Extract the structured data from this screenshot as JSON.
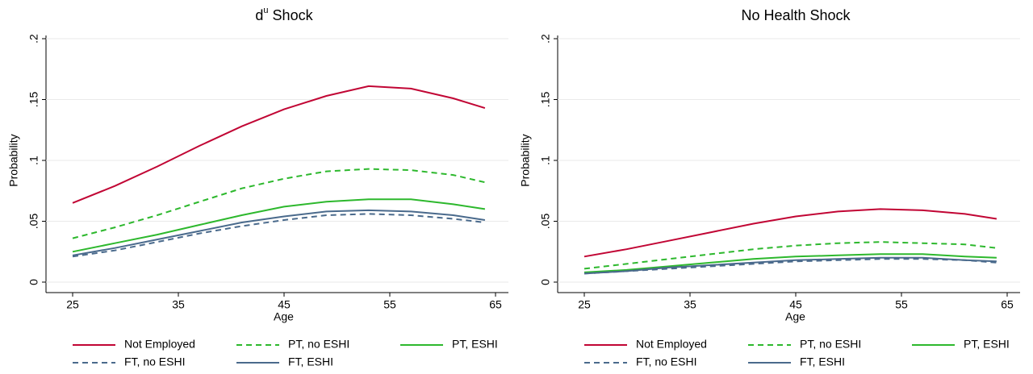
{
  "chart_data": [
    {
      "type": "line",
      "title": [
        "d",
        "u",
        " Shock"
      ],
      "title_superscript": 1,
      "xlabel": "Age",
      "ylabel": "Probability",
      "x": [
        25,
        29,
        33,
        37,
        41,
        45,
        49,
        53,
        57,
        61,
        64
      ],
      "xlim": [
        25,
        65
      ],
      "xticks": [
        25,
        35,
        45,
        55,
        65
      ],
      "ylim": [
        0,
        0.2
      ],
      "yticks": [
        0,
        {
          "value": 0.05,
          "label": ".05"
        },
        {
          "value": 0.1,
          "label": ".1"
        },
        {
          "value": 0.15,
          "label": ".15"
        },
        {
          "value": 0.2,
          "label": ".2"
        }
      ],
      "grid": true,
      "legend": "bottom",
      "series": [
        {
          "name": "Not Employed",
          "color": "#c10534",
          "dash": false,
          "values": [
            0.065,
            0.079,
            0.095,
            0.112,
            0.128,
            0.142,
            0.153,
            0.161,
            0.159,
            0.151,
            0.143
          ]
        },
        {
          "name": "PT, no ESHI",
          "color": "#2db82d",
          "dash": true,
          "values": [
            0.036,
            0.045,
            0.055,
            0.066,
            0.077,
            0.085,
            0.091,
            0.093,
            0.092,
            0.088,
            0.082
          ]
        },
        {
          "name": "PT, ESHI",
          "color": "#2db82d",
          "dash": false,
          "values": [
            0.025,
            0.032,
            0.039,
            0.047,
            0.055,
            0.062,
            0.066,
            0.068,
            0.068,
            0.064,
            0.06
          ]
        },
        {
          "name": "FT, no ESHI",
          "color": "#4a6a8c",
          "dash": true,
          "values": [
            0.021,
            0.026,
            0.033,
            0.04,
            0.046,
            0.051,
            0.055,
            0.056,
            0.055,
            0.052,
            0.049
          ]
        },
        {
          "name": "FT, ESHI",
          "color": "#4a6a8c",
          "dash": false,
          "values": [
            0.022,
            0.028,
            0.035,
            0.042,
            0.049,
            0.054,
            0.058,
            0.059,
            0.058,
            0.055,
            0.051
          ]
        }
      ]
    },
    {
      "type": "line",
      "title": "No Health Shock",
      "xlabel": "Age",
      "ylabel": "Probability",
      "x": [
        25,
        29,
        33,
        37,
        41,
        45,
        49,
        53,
        57,
        61,
        64
      ],
      "xlim": [
        25,
        65
      ],
      "xticks": [
        25,
        35,
        45,
        55,
        65
      ],
      "ylim": [
        0,
        0.2
      ],
      "yticks": [
        0,
        {
          "value": 0.05,
          "label": ".05"
        },
        {
          "value": 0.1,
          "label": ".1"
        },
        {
          "value": 0.15,
          "label": ".15"
        },
        {
          "value": 0.2,
          "label": ".2"
        }
      ],
      "grid": true,
      "legend": "bottom",
      "series": [
        {
          "name": "Not Employed",
          "color": "#c10534",
          "dash": false,
          "values": [
            0.021,
            0.027,
            0.034,
            0.041,
            0.048,
            0.054,
            0.058,
            0.06,
            0.059,
            0.056,
            0.052
          ]
        },
        {
          "name": "PT, no ESHI",
          "color": "#2db82d",
          "dash": true,
          "values": [
            0.011,
            0.015,
            0.019,
            0.023,
            0.027,
            0.03,
            0.032,
            0.033,
            0.032,
            0.031,
            0.028
          ]
        },
        {
          "name": "PT, ESHI",
          "color": "#2db82d",
          "dash": false,
          "values": [
            0.008,
            0.01,
            0.013,
            0.016,
            0.019,
            0.021,
            0.022,
            0.023,
            0.023,
            0.021,
            0.02
          ]
        },
        {
          "name": "FT, no ESHI",
          "color": "#4a6a8c",
          "dash": true,
          "values": [
            0.007,
            0.009,
            0.011,
            0.013,
            0.015,
            0.017,
            0.018,
            0.019,
            0.019,
            0.018,
            0.016
          ]
        },
        {
          "name": "FT, ESHI",
          "color": "#4a6a8c",
          "dash": false,
          "values": [
            0.007,
            0.009,
            0.012,
            0.014,
            0.016,
            0.018,
            0.019,
            0.02,
            0.02,
            0.018,
            0.017
          ]
        }
      ]
    }
  ]
}
